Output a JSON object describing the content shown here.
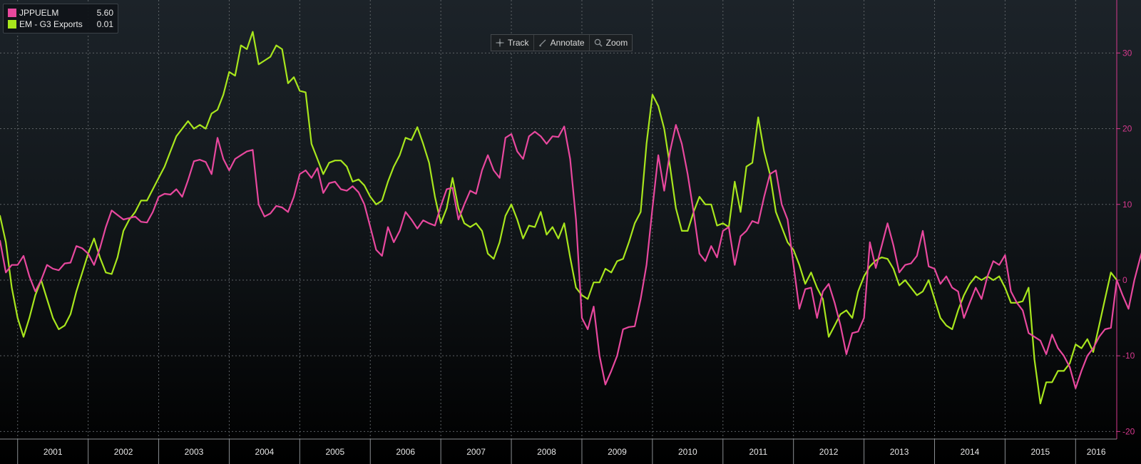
{
  "toolbar": {
    "track_label": "Track",
    "annotate_label": "Annotate",
    "zoom_label": "Zoom",
    "icons": [
      "crosshair-icon",
      "pencil-icon",
      "magnifier-icon"
    ]
  },
  "colors": {
    "background_top": "#1c2329",
    "background_bottom": "#000000",
    "grid": "#5d6266",
    "series_pink": "#e8489e",
    "series_green": "#a8e61d",
    "axis_right": "#d5398e",
    "axis_text_bottom": "#e6e6e6"
  },
  "chart_data": {
    "type": "line",
    "x_start": "2000-10",
    "x_step": "month",
    "x_range": [
      "2000-10",
      "2016-08"
    ],
    "ylim": [
      -21,
      37
    ],
    "y_ticks": [
      -20,
      -10,
      0,
      10,
      20,
      30
    ],
    "x_tick_labels": [
      "2001",
      "2002",
      "2003",
      "2004",
      "2005",
      "2006",
      "2007",
      "2008",
      "2009",
      "2010",
      "2011",
      "2012",
      "2013",
      "2014",
      "2015",
      "2016"
    ],
    "y_axis_side": "right",
    "grid": true,
    "legend_position": "top-left",
    "series": [
      {
        "name": "JPPUELM",
        "last_value": "5.60",
        "color": "#e8489e",
        "values": [
          5.2,
          1.0,
          2.0,
          2.0,
          3.2,
          0.5,
          -1.5,
          0.0,
          2.0,
          1.5,
          1.3,
          2.2,
          2.3,
          4.5,
          4.2,
          3.5,
          2.0,
          4.2,
          7.0,
          9.2,
          8.6,
          8.0,
          8.2,
          8.4,
          7.7,
          7.6,
          9.0,
          11.0,
          11.4,
          11.3,
          12.0,
          11.0,
          13.2,
          15.7,
          15.9,
          15.6,
          14.0,
          18.8,
          16.0,
          14.5,
          16.0,
          16.5,
          17.0,
          17.2,
          10.0,
          8.4,
          8.8,
          9.8,
          9.6,
          9.0,
          11.0,
          14.0,
          14.5,
          13.5,
          14.8,
          11.5,
          12.8,
          13.0,
          12.0,
          11.8,
          12.4,
          11.6,
          10.0,
          7.0,
          4.0,
          3.2,
          7.0,
          5.0,
          6.5,
          9.0,
          8.0,
          6.8,
          7.9,
          7.5,
          7.2,
          9.8,
          12.0,
          12.2,
          8.0,
          10.0,
          11.8,
          11.4,
          14.5,
          16.5,
          14.5,
          13.5,
          18.8,
          19.3,
          17.0,
          16.0,
          19.0,
          19.6,
          19.0,
          18.0,
          19.0,
          18.9,
          20.3,
          16.0,
          8.0,
          -5.0,
          -6.5,
          -3.5,
          -10.0,
          -13.8,
          -12.0,
          -10.0,
          -6.5,
          -6.2,
          -6.1,
          -2.5,
          2.0,
          9.5,
          16.5,
          11.8,
          17.0,
          20.5,
          18.0,
          14.0,
          9.0,
          3.5,
          2.5,
          4.5,
          3.0,
          6.5,
          7.0,
          2.0,
          5.8,
          6.5,
          7.8,
          7.5,
          11.0,
          14.0,
          14.5,
          10.0,
          8.0,
          2.0,
          -3.8,
          -1.2,
          -1.0,
          -5.0,
          -1.5,
          -0.5,
          -3.0,
          -6.0,
          -9.8,
          -7.0,
          -6.8,
          -5.0,
          5.0,
          1.6,
          4.5,
          7.5,
          4.6,
          1.0,
          2.0,
          2.2,
          3.2,
          6.5,
          1.8,
          1.5,
          -0.5,
          0.5,
          -1.0,
          -1.5,
          -5.0,
          -3.0,
          -1.0,
          -2.5,
          0.5,
          2.5,
          2.0,
          3.3,
          -1.5,
          -3.0,
          -4.0,
          -7.0,
          -7.5,
          -8.0,
          -9.8,
          -7.2,
          -9.0,
          -10.0,
          -11.5,
          -14.3,
          -12.0,
          -10.0,
          -9.0,
          -7.5,
          -6.5,
          -6.3,
          0.0,
          -2.0,
          -3.8,
          0.0,
          3.0,
          5.6
        ]
      },
      {
        "name": "EM - G3 Exports",
        "last_value": "0.01",
        "color": "#a8e61d",
        "values": [
          8.5,
          5.0,
          -1.0,
          -5.0,
          -7.5,
          -5.0,
          -2.0,
          0.0,
          -2.5,
          -5.0,
          -6.5,
          -6.0,
          -4.5,
          -1.5,
          1.0,
          3.5,
          5.5,
          3.0,
          1.0,
          0.8,
          3.0,
          6.5,
          8.0,
          9.0,
          10.5,
          10.5,
          12.0,
          13.5,
          15.0,
          17.0,
          19.0,
          20.0,
          21.0,
          20.0,
          20.5,
          20.0,
          22.0,
          22.5,
          24.5,
          27.5,
          27.0,
          31.0,
          30.5,
          32.8,
          28.5,
          29.0,
          29.5,
          31.0,
          30.5,
          26.0,
          26.8,
          25.0,
          24.8,
          18.0,
          16.0,
          14.0,
          15.5,
          15.8,
          15.8,
          15.0,
          13.0,
          13.3,
          12.5,
          11.0,
          10.0,
          10.5,
          13.0,
          15.0,
          16.5,
          18.8,
          18.5,
          20.2,
          18.0,
          15.5,
          11.0,
          7.5,
          9.5,
          13.5,
          9.5,
          7.5,
          7.0,
          7.5,
          6.5,
          3.5,
          2.8,
          5.0,
          8.5,
          10.0,
          8.0,
          5.5,
          7.2,
          7.0,
          9.0,
          6.0,
          7.0,
          5.5,
          7.5,
          3.0,
          -1.0,
          -2.0,
          -2.5,
          -0.3,
          -0.3,
          1.5,
          1.0,
          2.5,
          2.8,
          5.0,
          7.5,
          9.0,
          18.0,
          24.5,
          23.0,
          20.0,
          15.0,
          9.5,
          6.5,
          6.5,
          9.0,
          11.0,
          10.0,
          10.0,
          7.2,
          7.5,
          7.0,
          13.0,
          9.0,
          15.0,
          15.5,
          21.5,
          17.0,
          14.0,
          9.0,
          7.0,
          5.0,
          4.0,
          2.0,
          -0.5,
          1.0,
          -1.0,
          -2.5,
          -7.5,
          -6.0,
          -4.5,
          -4.0,
          -5.0,
          -1.5,
          0.5,
          1.8,
          2.6,
          3.0,
          2.8,
          1.5,
          -0.7,
          0.0,
          -1.0,
          -2.0,
          -1.5,
          0.0,
          -2.5,
          -5.0,
          -6.0,
          -6.5,
          -4.0,
          -2.0,
          -0.5,
          0.5,
          0.0,
          0.5,
          0.0,
          0.5,
          -1.0,
          -3.0,
          -3.0,
          -2.8,
          -1.0,
          -10.5,
          -16.3,
          -13.5,
          -13.5,
          -12.0,
          -12.0,
          -11.0,
          -8.5,
          -9.0,
          -7.8,
          -9.5,
          -6.0,
          -2.5,
          1.0,
          0.01
        ]
      }
    ]
  }
}
